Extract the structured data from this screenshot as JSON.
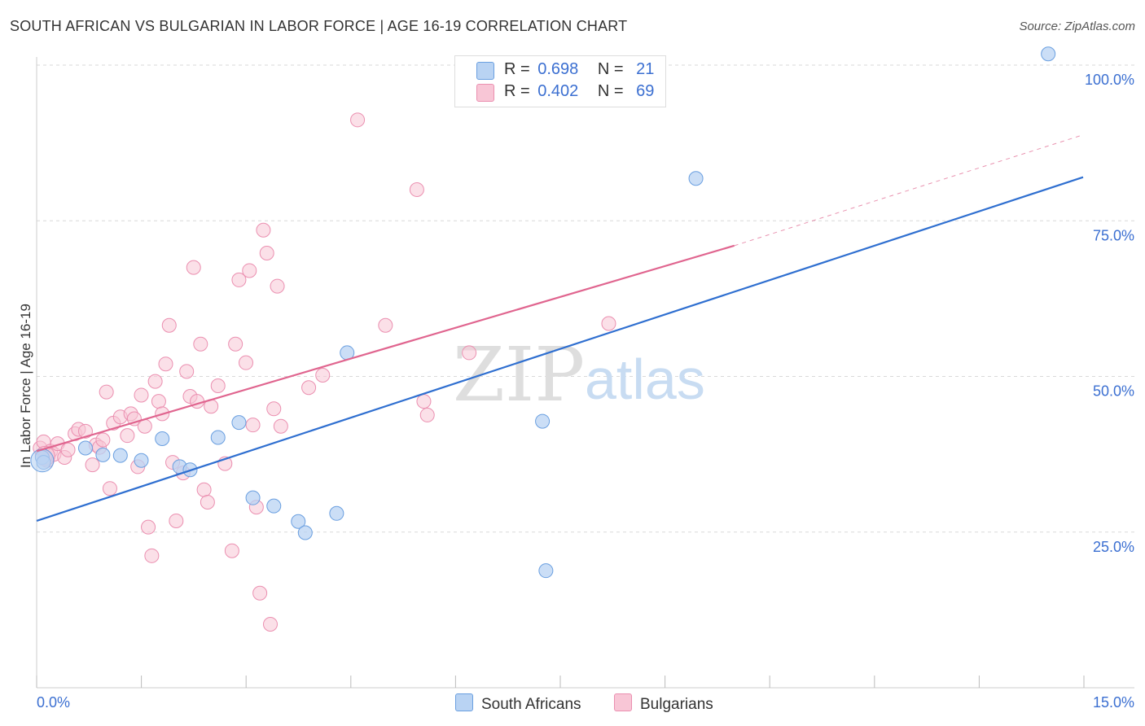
{
  "title": "SOUTH AFRICAN VS BULGARIAN IN LABOR FORCE | AGE 16-19 CORRELATION CHART",
  "source": "Source: ZipAtlas.com",
  "watermark": {
    "zip": "ZIP",
    "atlas": "atlas"
  },
  "legend": {
    "south_africans": {
      "r_label": "R =",
      "r_value": "0.698",
      "n_label": "N =",
      "n_value": "21"
    },
    "bulgarians": {
      "r_label": "R =",
      "r_value": "0.402",
      "n_label": "N =",
      "n_value": "69"
    }
  },
  "colors": {
    "blue_fill": "#b9d3f3",
    "blue_stroke": "#6a9fe0",
    "blue_line": "#2f6fd0",
    "pink_fill": "#f8c6d6",
    "pink_stroke": "#eb8fb0",
    "pink_line": "#e0658f",
    "axis_text": "#3b6fd1",
    "grid": "#d9d9d9"
  },
  "chart_data": {
    "type": "scatter",
    "title": "SOUTH AFRICAN VS BULGARIAN IN LABOR FORCE | AGE 16-19 CORRELATION CHART",
    "xlabel": "",
    "ylabel": "In Labor Force | Age 16-19",
    "xlim": [
      0,
      15
    ],
    "ylim": [
      0,
      100
    ],
    "x_tick_labels": [
      "0.0%",
      "15.0%"
    ],
    "y_ticks": [
      25,
      50,
      75,
      100
    ],
    "y_tick_labels": [
      "25.0%",
      "50.0%",
      "75.0%",
      "100.0%"
    ],
    "grid": true,
    "series": [
      {
        "name": "South Africans",
        "r": 0.698,
        "n": 21,
        "trend": {
          "x": [
            0,
            15
          ],
          "y": [
            26.8,
            82.0
          ],
          "dashed_extension": false
        },
        "points": [
          {
            "x": 0.08,
            "y": 37.0
          },
          {
            "x": 0.7,
            "y": 38.5
          },
          {
            "x": 0.95,
            "y": 37.4
          },
          {
            "x": 1.2,
            "y": 37.3
          },
          {
            "x": 1.5,
            "y": 36.5
          },
          {
            "x": 1.8,
            "y": 40.0
          },
          {
            "x": 2.05,
            "y": 35.5
          },
          {
            "x": 2.2,
            "y": 35.0
          },
          {
            "x": 2.6,
            "y": 40.2
          },
          {
            "x": 2.9,
            "y": 42.6
          },
          {
            "x": 3.1,
            "y": 30.5
          },
          {
            "x": 3.4,
            "y": 29.2
          },
          {
            "x": 3.75,
            "y": 26.7
          },
          {
            "x": 3.85,
            "y": 24.9
          },
          {
            "x": 4.3,
            "y": 28.0
          },
          {
            "x": 4.45,
            "y": 53.8
          },
          {
            "x": 7.25,
            "y": 42.8
          },
          {
            "x": 7.3,
            "y": 18.8
          },
          {
            "x": 9.45,
            "y": 81.8
          },
          {
            "x": 14.5,
            "y": 101.8
          },
          {
            "x": 0.1,
            "y": 36.2
          }
        ]
      },
      {
        "name": "Bulgarians",
        "r": 0.402,
        "n": 69,
        "trend": {
          "x": [
            0,
            10
          ],
          "y": [
            38.0,
            71.0
          ],
          "dashed_extension": true,
          "dashed_to": [
            15,
            88.8
          ]
        },
        "points": [
          {
            "x": 0.05,
            "y": 38.5
          },
          {
            "x": 0.1,
            "y": 39.5
          },
          {
            "x": 0.15,
            "y": 36.5
          },
          {
            "x": 0.2,
            "y": 38.0
          },
          {
            "x": 0.25,
            "y": 37.5
          },
          {
            "x": 0.3,
            "y": 39.2
          },
          {
            "x": 0.4,
            "y": 37.0
          },
          {
            "x": 0.45,
            "y": 38.2
          },
          {
            "x": 0.55,
            "y": 40.8
          },
          {
            "x": 0.6,
            "y": 41.5
          },
          {
            "x": 0.7,
            "y": 41.2
          },
          {
            "x": 0.8,
            "y": 35.8
          },
          {
            "x": 0.85,
            "y": 39.0
          },
          {
            "x": 0.9,
            "y": 38.6
          },
          {
            "x": 0.95,
            "y": 39.8
          },
          {
            "x": 1.0,
            "y": 47.5
          },
          {
            "x": 1.05,
            "y": 32.0
          },
          {
            "x": 1.1,
            "y": 42.5
          },
          {
            "x": 1.2,
            "y": 43.5
          },
          {
            "x": 1.3,
            "y": 40.5
          },
          {
            "x": 1.35,
            "y": 44.0
          },
          {
            "x": 1.4,
            "y": 43.2
          },
          {
            "x": 1.45,
            "y": 35.5
          },
          {
            "x": 1.5,
            "y": 47.0
          },
          {
            "x": 1.55,
            "y": 42.0
          },
          {
            "x": 1.6,
            "y": 25.8
          },
          {
            "x": 1.65,
            "y": 21.2
          },
          {
            "x": 1.7,
            "y": 49.2
          },
          {
            "x": 1.75,
            "y": 46.0
          },
          {
            "x": 1.8,
            "y": 44.0
          },
          {
            "x": 1.85,
            "y": 52.0
          },
          {
            "x": 1.9,
            "y": 58.2
          },
          {
            "x": 1.95,
            "y": 36.2
          },
          {
            "x": 2.0,
            "y": 26.8
          },
          {
            "x": 2.1,
            "y": 34.5
          },
          {
            "x": 2.15,
            "y": 50.8
          },
          {
            "x": 2.2,
            "y": 46.8
          },
          {
            "x": 2.25,
            "y": 67.5
          },
          {
            "x": 2.3,
            "y": 46.0
          },
          {
            "x": 2.35,
            "y": 55.2
          },
          {
            "x": 2.4,
            "y": 31.8
          },
          {
            "x": 2.45,
            "y": 29.8
          },
          {
            "x": 2.5,
            "y": 45.2
          },
          {
            "x": 2.6,
            "y": 48.5
          },
          {
            "x": 2.7,
            "y": 36.0
          },
          {
            "x": 2.8,
            "y": 22.0
          },
          {
            "x": 2.85,
            "y": 55.2
          },
          {
            "x": 2.9,
            "y": 65.5
          },
          {
            "x": 3.0,
            "y": 52.2
          },
          {
            "x": 3.05,
            "y": 67.0
          },
          {
            "x": 3.1,
            "y": 42.2
          },
          {
            "x": 3.15,
            "y": 29.0
          },
          {
            "x": 3.2,
            "y": 15.2
          },
          {
            "x": 3.25,
            "y": 73.5
          },
          {
            "x": 3.3,
            "y": 69.8
          },
          {
            "x": 3.35,
            "y": 10.2
          },
          {
            "x": 3.4,
            "y": 44.8
          },
          {
            "x": 3.45,
            "y": 64.5
          },
          {
            "x": 3.5,
            "y": 42.0
          },
          {
            "x": 3.9,
            "y": 48.2
          },
          {
            "x": 4.1,
            "y": 50.2
          },
          {
            "x": 4.6,
            "y": 91.2
          },
          {
            "x": 5.0,
            "y": 58.2
          },
          {
            "x": 5.45,
            "y": 80.0
          },
          {
            "x": 5.55,
            "y": 46.0
          },
          {
            "x": 5.6,
            "y": 43.8
          },
          {
            "x": 6.2,
            "y": 53.8
          },
          {
            "x": 8.2,
            "y": 58.5
          },
          {
            "x": 0.12,
            "y": 37.0
          }
        ]
      }
    ]
  }
}
